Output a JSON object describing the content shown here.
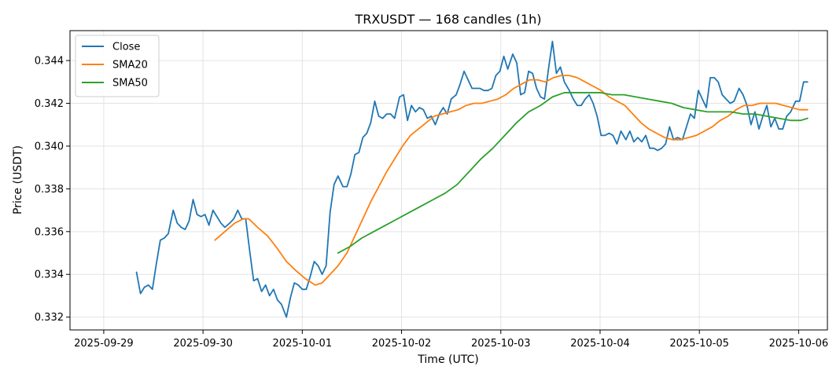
{
  "chart_data": {
    "type": "line",
    "title": "TRXUSDT — 168 candles (1h)",
    "xlabel": "Time (UTC)",
    "ylabel": "Price (USDT)",
    "x_ticks": [
      "2025-09-29",
      "2025-09-30",
      "2025-10-01",
      "2025-10-02",
      "2025-10-03",
      "2025-10-04",
      "2025-10-05",
      "2025-10-06"
    ],
    "y_ticks": [
      "0.332",
      "0.334",
      "0.336",
      "0.338",
      "0.340",
      "0.342",
      "0.344"
    ],
    "ylim": [
      0.3314,
      0.3454
    ],
    "xlim": [
      -0.34,
      7.29
    ],
    "grid": true,
    "legend_position": "top-left",
    "series": [
      {
        "name": "Close",
        "color": "#1f77b4",
        "points": [
          [
            0.33,
            0.3341
          ],
          [
            0.37,
            0.3331
          ],
          [
            0.41,
            0.3334
          ],
          [
            0.45,
            0.3335
          ],
          [
            0.49,
            0.3333
          ],
          [
            0.53,
            0.3345
          ],
          [
            0.57,
            0.3356
          ],
          [
            0.61,
            0.3357
          ],
          [
            0.65,
            0.3359
          ],
          [
            0.7,
            0.337
          ],
          [
            0.74,
            0.3364
          ],
          [
            0.78,
            0.3362
          ],
          [
            0.82,
            0.3361
          ],
          [
            0.86,
            0.3365
          ],
          [
            0.9,
            0.3375
          ],
          [
            0.94,
            0.3368
          ],
          [
            0.98,
            0.3367
          ],
          [
            1.02,
            0.3368
          ],
          [
            1.06,
            0.3363
          ],
          [
            1.1,
            0.337
          ],
          [
            1.14,
            0.3367
          ],
          [
            1.18,
            0.3364
          ],
          [
            1.22,
            0.3362
          ],
          [
            1.27,
            0.3364
          ],
          [
            1.31,
            0.3366
          ],
          [
            1.35,
            0.337
          ],
          [
            1.39,
            0.3366
          ],
          [
            1.43,
            0.3366
          ],
          [
            1.47,
            0.3351
          ],
          [
            1.51,
            0.3337
          ],
          [
            1.55,
            0.3338
          ],
          [
            1.59,
            0.3332
          ],
          [
            1.63,
            0.3335
          ],
          [
            1.67,
            0.333
          ],
          [
            1.71,
            0.3333
          ],
          [
            1.75,
            0.3328
          ],
          [
            1.79,
            0.3326
          ],
          [
            1.84,
            0.332
          ],
          [
            1.88,
            0.3329
          ],
          [
            1.92,
            0.3336
          ],
          [
            1.96,
            0.3335
          ],
          [
            2.0,
            0.3333
          ],
          [
            2.04,
            0.3333
          ],
          [
            2.08,
            0.3339
          ],
          [
            2.12,
            0.3346
          ],
          [
            2.16,
            0.3344
          ],
          [
            2.2,
            0.334
          ],
          [
            2.24,
            0.3344
          ],
          [
            2.28,
            0.3369
          ],
          [
            2.32,
            0.3382
          ],
          [
            2.36,
            0.3386
          ],
          [
            2.41,
            0.3381
          ],
          [
            2.45,
            0.3381
          ],
          [
            2.49,
            0.3387
          ],
          [
            2.53,
            0.3396
          ],
          [
            2.57,
            0.3397
          ],
          [
            2.61,
            0.3404
          ],
          [
            2.65,
            0.3406
          ],
          [
            2.69,
            0.3411
          ],
          [
            2.73,
            0.3421
          ],
          [
            2.77,
            0.3414
          ],
          [
            2.81,
            0.3413
          ],
          [
            2.85,
            0.3415
          ],
          [
            2.89,
            0.3415
          ],
          [
            2.93,
            0.3413
          ],
          [
            2.98,
            0.3423
          ],
          [
            3.02,
            0.3424
          ],
          [
            3.06,
            0.3412
          ],
          [
            3.1,
            0.3419
          ],
          [
            3.14,
            0.3416
          ],
          [
            3.18,
            0.3418
          ],
          [
            3.22,
            0.3417
          ],
          [
            3.26,
            0.3413
          ],
          [
            3.3,
            0.3414
          ],
          [
            3.34,
            0.341
          ],
          [
            3.38,
            0.3415
          ],
          [
            3.42,
            0.3418
          ],
          [
            3.46,
            0.3415
          ],
          [
            3.5,
            0.3422
          ],
          [
            3.55,
            0.3424
          ],
          [
            3.59,
            0.3429
          ],
          [
            3.63,
            0.3435
          ],
          [
            3.67,
            0.3431
          ],
          [
            3.71,
            0.3427
          ],
          [
            3.75,
            0.3427
          ],
          [
            3.79,
            0.3427
          ],
          [
            3.83,
            0.3426
          ],
          [
            3.87,
            0.3426
          ],
          [
            3.91,
            0.3427
          ],
          [
            3.95,
            0.3433
          ],
          [
            3.99,
            0.3435
          ],
          [
            4.03,
            0.3442
          ],
          [
            4.07,
            0.3436
          ],
          [
            4.12,
            0.3443
          ],
          [
            4.16,
            0.3439
          ],
          [
            4.2,
            0.3424
          ],
          [
            4.24,
            0.3425
          ],
          [
            4.28,
            0.3435
          ],
          [
            4.32,
            0.3434
          ],
          [
            4.36,
            0.3427
          ],
          [
            4.4,
            0.3423
          ],
          [
            4.44,
            0.3422
          ],
          [
            4.48,
            0.3436
          ],
          [
            4.52,
            0.3449
          ],
          [
            4.56,
            0.3434
          ],
          [
            4.6,
            0.3437
          ],
          [
            4.64,
            0.343
          ],
          [
            4.69,
            0.3426
          ],
          [
            4.73,
            0.3422
          ],
          [
            4.77,
            0.3419
          ],
          [
            4.81,
            0.3419
          ],
          [
            4.85,
            0.3422
          ],
          [
            4.89,
            0.3424
          ],
          [
            4.93,
            0.342
          ],
          [
            4.97,
            0.3414
          ],
          [
            5.01,
            0.3405
          ],
          [
            5.05,
            0.3405
          ],
          [
            5.09,
            0.3406
          ],
          [
            5.13,
            0.3405
          ],
          [
            5.17,
            0.3401
          ],
          [
            5.21,
            0.3407
          ],
          [
            5.26,
            0.3403
          ],
          [
            5.3,
            0.3407
          ],
          [
            5.34,
            0.3402
          ],
          [
            5.38,
            0.3404
          ],
          [
            5.42,
            0.3402
          ],
          [
            5.46,
            0.3405
          ],
          [
            5.5,
            0.3399
          ],
          [
            5.54,
            0.3399
          ],
          [
            5.58,
            0.3398
          ],
          [
            5.62,
            0.3399
          ],
          [
            5.66,
            0.3401
          ],
          [
            5.7,
            0.3409
          ],
          [
            5.74,
            0.3403
          ],
          [
            5.78,
            0.3404
          ],
          [
            5.83,
            0.3403
          ],
          [
            5.87,
            0.3409
          ],
          [
            5.91,
            0.3415
          ],
          [
            5.95,
            0.3413
          ],
          [
            5.99,
            0.3426
          ],
          [
            6.03,
            0.3422
          ],
          [
            6.07,
            0.3418
          ],
          [
            6.11,
            0.3432
          ],
          [
            6.15,
            0.3432
          ],
          [
            6.19,
            0.343
          ],
          [
            6.23,
            0.3424
          ],
          [
            6.27,
            0.3422
          ],
          [
            6.31,
            0.342
          ],
          [
            6.35,
            0.3421
          ],
          [
            6.4,
            0.3427
          ],
          [
            6.44,
            0.3424
          ],
          [
            6.48,
            0.3419
          ],
          [
            6.52,
            0.341
          ],
          [
            6.56,
            0.3416
          ],
          [
            6.6,
            0.3408
          ],
          [
            6.64,
            0.3414
          ],
          [
            6.68,
            0.3419
          ],
          [
            6.72,
            0.3409
          ],
          [
            6.76,
            0.3413
          ],
          [
            6.8,
            0.3408
          ],
          [
            6.84,
            0.3408
          ],
          [
            6.88,
            0.3414
          ],
          [
            6.92,
            0.3416
          ],
          [
            6.97,
            0.3421
          ],
          [
            7.01,
            0.3421
          ],
          [
            7.05,
            0.343
          ],
          [
            7.09,
            0.343
          ]
        ]
      },
      {
        "name": "SMA20",
        "color": "#ff7f0e",
        "points": [
          [
            1.12,
            0.3356
          ],
          [
            1.22,
            0.336
          ],
          [
            1.32,
            0.3364
          ],
          [
            1.41,
            0.3366
          ],
          [
            1.46,
            0.3366
          ],
          [
            1.55,
            0.3362
          ],
          [
            1.65,
            0.3358
          ],
          [
            1.75,
            0.3352
          ],
          [
            1.84,
            0.3346
          ],
          [
            1.93,
            0.3342
          ],
          [
            2.03,
            0.3338
          ],
          [
            2.13,
            0.3335
          ],
          [
            2.2,
            0.3336
          ],
          [
            2.28,
            0.334
          ],
          [
            2.36,
            0.3344
          ],
          [
            2.45,
            0.335
          ],
          [
            2.53,
            0.3358
          ],
          [
            2.61,
            0.3366
          ],
          [
            2.69,
            0.3374
          ],
          [
            2.77,
            0.3381
          ],
          [
            2.85,
            0.3388
          ],
          [
            2.93,
            0.3394
          ],
          [
            3.01,
            0.34
          ],
          [
            3.09,
            0.3405
          ],
          [
            3.17,
            0.3408
          ],
          [
            3.25,
            0.3411
          ],
          [
            3.33,
            0.3414
          ],
          [
            3.41,
            0.3415
          ],
          [
            3.49,
            0.3416
          ],
          [
            3.57,
            0.3417
          ],
          [
            3.65,
            0.3419
          ],
          [
            3.73,
            0.342
          ],
          [
            3.81,
            0.342
          ],
          [
            3.89,
            0.3421
          ],
          [
            3.97,
            0.3422
          ],
          [
            4.05,
            0.3424
          ],
          [
            4.13,
            0.3427
          ],
          [
            4.21,
            0.3429
          ],
          [
            4.29,
            0.3431
          ],
          [
            4.37,
            0.3431
          ],
          [
            4.45,
            0.343
          ],
          [
            4.53,
            0.3432
          ],
          [
            4.61,
            0.3433
          ],
          [
            4.69,
            0.3433
          ],
          [
            4.77,
            0.3432
          ],
          [
            4.85,
            0.343
          ],
          [
            4.93,
            0.3428
          ],
          [
            5.01,
            0.3426
          ],
          [
            5.09,
            0.3423
          ],
          [
            5.17,
            0.3421
          ],
          [
            5.25,
            0.3419
          ],
          [
            5.33,
            0.3415
          ],
          [
            5.41,
            0.3411
          ],
          [
            5.49,
            0.3408
          ],
          [
            5.57,
            0.3406
          ],
          [
            5.65,
            0.3404
          ],
          [
            5.73,
            0.3403
          ],
          [
            5.81,
            0.3403
          ],
          [
            5.89,
            0.3404
          ],
          [
            5.97,
            0.3405
          ],
          [
            6.05,
            0.3407
          ],
          [
            6.13,
            0.3409
          ],
          [
            6.21,
            0.3412
          ],
          [
            6.29,
            0.3414
          ],
          [
            6.37,
            0.3417
          ],
          [
            6.45,
            0.3419
          ],
          [
            6.53,
            0.3419
          ],
          [
            6.61,
            0.342
          ],
          [
            6.69,
            0.342
          ],
          [
            6.77,
            0.342
          ],
          [
            6.85,
            0.3419
          ],
          [
            6.93,
            0.3418
          ],
          [
            7.01,
            0.3417
          ],
          [
            7.09,
            0.3417
          ]
        ]
      },
      {
        "name": "SMA50",
        "color": "#2ca02c",
        "points": [
          [
            2.36,
            0.335
          ],
          [
            2.48,
            0.3353
          ],
          [
            2.6,
            0.3357
          ],
          [
            2.72,
            0.336
          ],
          [
            2.84,
            0.3363
          ],
          [
            2.96,
            0.3366
          ],
          [
            3.08,
            0.3369
          ],
          [
            3.2,
            0.3372
          ],
          [
            3.32,
            0.3375
          ],
          [
            3.44,
            0.3378
          ],
          [
            3.56,
            0.3382
          ],
          [
            3.68,
            0.3388
          ],
          [
            3.8,
            0.3394
          ],
          [
            3.92,
            0.3399
          ],
          [
            4.04,
            0.3405
          ],
          [
            4.16,
            0.3411
          ],
          [
            4.28,
            0.3416
          ],
          [
            4.4,
            0.3419
          ],
          [
            4.52,
            0.3423
          ],
          [
            4.64,
            0.3425
          ],
          [
            4.76,
            0.3425
          ],
          [
            4.88,
            0.3425
          ],
          [
            5.0,
            0.3425
          ],
          [
            5.12,
            0.3424
          ],
          [
            5.24,
            0.3424
          ],
          [
            5.36,
            0.3423
          ],
          [
            5.48,
            0.3422
          ],
          [
            5.6,
            0.3421
          ],
          [
            5.72,
            0.342
          ],
          [
            5.84,
            0.3418
          ],
          [
            5.96,
            0.3417
          ],
          [
            6.08,
            0.3416
          ],
          [
            6.2,
            0.3416
          ],
          [
            6.32,
            0.3416
          ],
          [
            6.44,
            0.3415
          ],
          [
            6.56,
            0.3415
          ],
          [
            6.68,
            0.3414
          ],
          [
            6.8,
            0.3413
          ],
          [
            6.92,
            0.3412
          ],
          [
            7.02,
            0.3412
          ],
          [
            7.09,
            0.3413
          ]
        ]
      }
    ]
  }
}
